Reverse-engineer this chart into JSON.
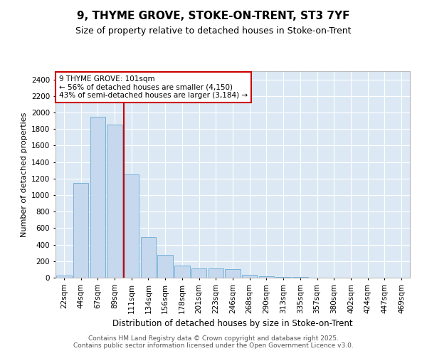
{
  "title_line1": "9, THYME GROVE, STOKE-ON-TRENT, ST3 7YF",
  "title_line2": "Size of property relative to detached houses in Stoke-on-Trent",
  "xlabel": "Distribution of detached houses by size in Stoke-on-Trent",
  "ylabel": "Number of detached properties",
  "bar_color": "#c5d8ee",
  "bar_edge_color": "#6aaad4",
  "background_color": "#dce9f5",
  "grid_color": "#ffffff",
  "annotation_line_color": "#cc0000",
  "annotation_box_color": "#cc0000",
  "annotation_text": "9 THYME GROVE: 101sqm\n← 56% of detached houses are smaller (4,150)\n43% of semi-detached houses are larger (3,184) →",
  "property_size_sqm": 101,
  "categories": [
    "22sqm",
    "44sqm",
    "67sqm",
    "89sqm",
    "111sqm",
    "134sqm",
    "156sqm",
    "178sqm",
    "201sqm",
    "223sqm",
    "246sqm",
    "268sqm",
    "290sqm",
    "313sqm",
    "335sqm",
    "357sqm",
    "380sqm",
    "402sqm",
    "424sqm",
    "447sqm",
    "469sqm"
  ],
  "values": [
    30,
    1150,
    1950,
    1850,
    1250,
    490,
    280,
    150,
    115,
    115,
    100,
    35,
    20,
    8,
    5,
    4,
    3,
    2,
    2,
    1,
    1
  ],
  "ylim": [
    0,
    2500
  ],
  "yticks": [
    0,
    200,
    400,
    600,
    800,
    1000,
    1200,
    1400,
    1600,
    1800,
    2000,
    2200,
    2400
  ],
  "red_line_x": 3.55,
  "footer_text": "Contains HM Land Registry data © Crown copyright and database right 2025.\nContains public sector information licensed under the Open Government Licence v3.0.",
  "title_fontsize": 11,
  "subtitle_fontsize": 9,
  "xlabel_fontsize": 8.5,
  "ylabel_fontsize": 8,
  "tick_fontsize": 7.5,
  "annotation_fontsize": 7.5,
  "footer_fontsize": 6.5
}
